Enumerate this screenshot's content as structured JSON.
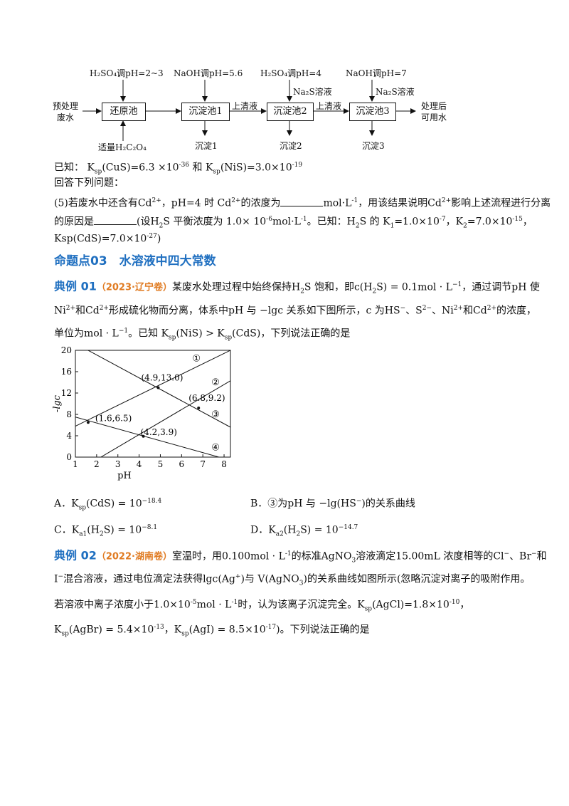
{
  "flowchart": {
    "input": [
      "预处理",
      "废水"
    ],
    "output": [
      "处理后",
      "可用水"
    ],
    "boxes": [
      "还原池",
      "沉淀池1",
      "沉淀池2",
      "沉淀池3"
    ],
    "top_labels": [
      "H₂SO₄调pH=2~3",
      "NaOH调pH=5.6",
      "H₂SO₄调pH=4",
      "NaOH调pH=7"
    ],
    "top_sublabels": [
      "Na₂S溶液",
      "Na₂S溶液"
    ],
    "bottom_label_reduce": "适量H₂C₂O₄",
    "between_labels": [
      "上清液",
      "上清液"
    ],
    "precipitates": [
      "沉淀1",
      "沉淀2",
      "沉淀3"
    ]
  },
  "known1": {
    "prefix": "已知：",
    "ksp_cus": "K",
    "sp": "sp",
    "cus_text": "(CuS)=6.3 ×10",
    "cus_exp": "-36",
    "and": " 和 ",
    "nis_text": "(NiS)=3.0×10",
    "nis_exp": "-19"
  },
  "answer_prompt": "回答下列问题：",
  "q5": {
    "line1_a": "(5)若废水中还含有Cd",
    "line1_sup": "2+",
    "line1_b": "，pH=4 时 Cd",
    "line1_c": "的浓度为",
    "line1_d": "mol·L",
    "line1_e": "-1",
    "line1_f": "，用该结果说明Cd",
    "line1_g": "影响上述流程进行分离",
    "line2_a": "的原因是",
    "line2_b": "(设H",
    "line2_c": "S 平衡浓度为 1.0× 10",
    "line2_d": "-6",
    "line2_e": "mol·L",
    "line2_f": "。已知：H",
    "line2_g": "S 的 K",
    "line2_h": "=1.0×10",
    "line2_i": "-7",
    "line2_j": "，K",
    "line2_k": "=7.0×10",
    "line2_l": "-15",
    "line3_a": "Ksp(CdS)=7.0×10",
    "line3_b": "-27",
    "line3_c": ")"
  },
  "section_heading": "命题点03　水溶液中四大常数",
  "ex1": {
    "label": "典例 01",
    "source": "（2023·辽宁卷）",
    "line1_a": "某废水处理过程中始终保持H",
    "line1_b": "S 饱和，即",
    "line1_c": "c(H",
    "line1_d": "S) = 0.1mol · L",
    "line1_e": "，通过调节pH 使",
    "line2_a": "Ni",
    "line2_b": "和Cd",
    "line2_c": "形成硫化物而分离，体系中pH 与 −lgc 关系如下图所示，c 为HS",
    "line2_d": "、S",
    "line2_e": "、Ni",
    "line2_f": "和Cd",
    "line2_g": "的浓度，",
    "line3_a": "单位为mol · L",
    "line3_b": "。已知 K",
    "line3_c": "(NiS) > K",
    "line3_d": "(CdS)，下列说法正确的是"
  },
  "chart_data": {
    "type": "line",
    "xlabel": "pH",
    "ylabel": "-lgc",
    "xlim": [
      1,
      8.3
    ],
    "ylim": [
      0,
      20
    ],
    "xticks": [
      1,
      2,
      3,
      4,
      5,
      6,
      7,
      8
    ],
    "yticks": [
      0,
      4,
      8,
      12,
      16,
      20
    ],
    "grid": false,
    "series": [
      {
        "name": "①",
        "x": [
          1,
          8.3
        ],
        "y": [
          5.8,
          20
        ]
      },
      {
        "name": "②",
        "x": [
          2.2,
          8.3
        ],
        "y": [
          0,
          14.3
        ]
      },
      {
        "name": "③",
        "x": [
          1.6,
          8.3
        ],
        "y": [
          20,
          5.6
        ]
      },
      {
        "name": "④",
        "x": [
          1,
          8.3
        ],
        "y": [
          7.5,
          -0.6
        ]
      }
    ],
    "points": [
      {
        "x": 4.9,
        "y": 13.0,
        "label": "(4.9,13.0)"
      },
      {
        "x": 6.8,
        "y": 9.2,
        "label": "(6.8,9.2)"
      },
      {
        "x": 1.6,
        "y": 6.5,
        "label": "(1.6,6.5)"
      },
      {
        "x": 4.2,
        "y": 3.9,
        "label": "(4.2,3.9)"
      }
    ]
  },
  "options": {
    "A_label": "A．",
    "A_text_a": "K",
    "A_text_b": "(CdS) = 10",
    "A_exp": "−18.4",
    "B_label": "B．",
    "B_text": "③为pH 与 −lg(HS",
    "B_text_b": ")的关系曲线",
    "C_label": "C．",
    "C_text_a": "K",
    "C_text_b": "(H",
    "C_text_c": "S) = 10",
    "C_exp": "−8.1",
    "D_label": "D．",
    "D_text_a": "K",
    "D_text_b": "(H",
    "D_text_c": "S) = 10",
    "D_exp": "−14.7"
  },
  "ex2": {
    "label": "典例 02",
    "source": "（2022·湖南卷）",
    "line1_a": "室温时，用0.100mol · L",
    "line1_b": "的标准",
    "line1_c": "AgNO",
    "line1_d": "溶液滴定15.00mL 浓度相等的Cl",
    "line1_e": "、Br",
    "line1_f": "和",
    "line2_a": "I",
    "line2_b": "混合溶液，通过电位滴定法获得lgc(Ag",
    "line2_c": ")与 V(AgNO",
    "line2_d": ")的关系曲线如图所示(忽略沉淀对离子的吸附作用。",
    "line3_a": "若溶液中离子浓度小于1.0×10",
    "line3_b": "-5",
    "line3_c": "mol · L",
    "line3_d": "时，认为该离子沉淀完全。K",
    "line3_e": "(AgCl)=1.8×10",
    "line3_f": "-10",
    "line3_g": "，",
    "line4_a": "K",
    "line4_b": "(AgBr) = 5.4×10",
    "line4_c": "-13",
    "line4_d": "，K",
    "line4_e": "(AgI) = 8.5×10",
    "line4_f": "-17",
    "line4_g": ")。下列说法正确的是"
  }
}
